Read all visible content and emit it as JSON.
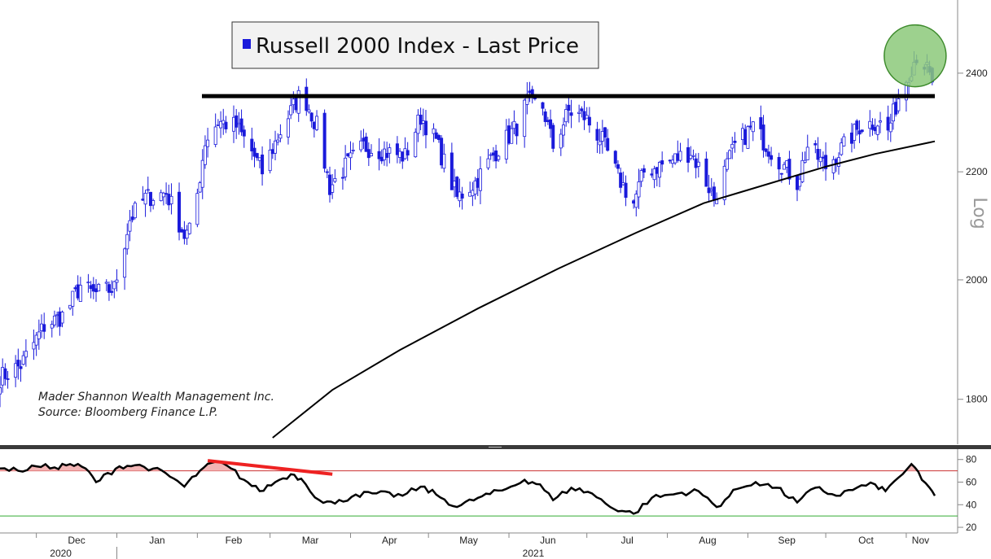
{
  "chart_data": [
    {
      "type": "candlestick",
      "legend": {
        "label": "Russell 2000 Index - Last Price",
        "color": "#1a1adb",
        "placement": "top-center"
      },
      "y_scale": "log",
      "y_scale_label": "Log",
      "ylim": [
        1730,
        2560
      ],
      "y_ticks": [
        1800,
        2000,
        2200,
        2400
      ],
      "x_range": [
        "2020-11-17",
        "2021-11-12"
      ],
      "x_ticks": [
        {
          "label": "Dec",
          "date": "2020-12-01"
        },
        {
          "label": "Jan",
          "date": "2021-01-01"
        },
        {
          "label": "Feb",
          "date": "2021-02-01"
        },
        {
          "label": "Mar",
          "date": "2021-03-01"
        },
        {
          "label": "Apr",
          "date": "2021-04-01"
        },
        {
          "label": "May",
          "date": "2021-05-01"
        },
        {
          "label": "Jun",
          "date": "2021-06-01"
        },
        {
          "label": "Jul",
          "date": "2021-07-01"
        },
        {
          "label": "Aug",
          "date": "2021-08-01"
        },
        {
          "label": "Sep",
          "date": "2021-09-01"
        },
        {
          "label": "Oct",
          "date": "2021-10-01"
        },
        {
          "label": "Nov",
          "date": "2021-11-01"
        }
      ],
      "x_year_labels": [
        {
          "label": "2020",
          "date": "2020-12-01"
        },
        {
          "label": "2021",
          "date": "2021-06-01"
        }
      ],
      "price_path": [
        [
          "2020-11-17",
          1835
        ],
        [
          "2020-11-25",
          1855
        ],
        [
          "2020-12-04",
          1920
        ],
        [
          "2020-12-12",
          1940
        ],
        [
          "2020-12-18",
          1990
        ],
        [
          "2020-12-23",
          1975
        ],
        [
          "2020-12-31",
          1985
        ],
        [
          "2021-01-06",
          2110
        ],
        [
          "2021-01-12",
          2150
        ],
        [
          "2021-01-20",
          2160
        ],
        [
          "2021-01-27",
          2080
        ],
        [
          "2021-01-30",
          2090
        ],
        [
          "2021-02-04",
          2260
        ],
        [
          "2021-02-09",
          2300
        ],
        [
          "2021-02-16",
          2290
        ],
        [
          "2021-02-22",
          2240
        ],
        [
          "2021-02-26",
          2200
        ],
        [
          "2021-03-05",
          2280
        ],
        [
          "2021-03-12",
          2350
        ],
        [
          "2021-03-15",
          2340
        ],
        [
          "2021-03-19",
          2290
        ],
        [
          "2021-03-24",
          2170
        ],
        [
          "2021-03-30",
          2210
        ],
        [
          "2021-04-06",
          2250
        ],
        [
          "2021-04-14",
          2240
        ],
        [
          "2021-04-22",
          2230
        ],
        [
          "2021-04-28",
          2310
        ],
        [
          "2021-05-04",
          2260
        ],
        [
          "2021-05-12",
          2150
        ],
        [
          "2021-05-19",
          2180
        ],
        [
          "2021-05-27",
          2240
        ],
        [
          "2021-06-04",
          2290
        ],
        [
          "2021-06-08",
          2340
        ],
        [
          "2021-06-14",
          2330
        ],
        [
          "2021-06-18",
          2250
        ],
        [
          "2021-06-24",
          2320
        ],
        [
          "2021-06-30",
          2310
        ],
        [
          "2021-07-07",
          2260
        ],
        [
          "2021-07-13",
          2190
        ],
        [
          "2021-07-19",
          2140
        ],
        [
          "2021-07-23",
          2200
        ],
        [
          "2021-08-02",
          2220
        ],
        [
          "2021-08-10",
          2240
        ],
        [
          "2021-08-19",
          2150
        ],
        [
          "2021-08-27",
          2250
        ],
        [
          "2021-09-03",
          2290
        ],
        [
          "2021-09-10",
          2240
        ],
        [
          "2021-09-20",
          2180
        ],
        [
          "2021-09-24",
          2250
        ],
        [
          "2021-10-01",
          2210
        ],
        [
          "2021-10-08",
          2250
        ],
        [
          "2021-10-14",
          2290
        ],
        [
          "2021-10-21",
          2300
        ],
        [
          "2021-10-25",
          2280
        ],
        [
          "2021-10-29",
          2350
        ],
        [
          "2021-11-05",
          2440
        ],
        [
          "2021-11-08",
          2420
        ],
        [
          "2021-11-10",
          2390
        ],
        [
          "2021-11-12",
          2350
        ]
      ],
      "moving_average": {
        "color": "#000000",
        "points": [
          [
            "2021-03-02",
            1740
          ],
          [
            "2021-03-25",
            1815
          ],
          [
            "2021-04-20",
            1880
          ],
          [
            "2021-05-20",
            1950
          ],
          [
            "2021-06-20",
            2020
          ],
          [
            "2021-07-20",
            2085
          ],
          [
            "2021-08-15",
            2140
          ],
          [
            "2021-09-01",
            2165
          ],
          [
            "2021-10-01",
            2210
          ],
          [
            "2021-10-20",
            2235
          ],
          [
            "2021-11-12",
            2260
          ]
        ]
      },
      "resistance_line": {
        "value": 2352,
        "x_start": "2021-01-30",
        "x_end": "2021-11-12",
        "color": "#000000"
      },
      "highlight_circle": {
        "date": "2021-11-06",
        "value": 2430,
        "fill": "#8cc97a",
        "stroke": "#3c8a2b"
      },
      "annotations": [
        "Mader Shannon Wealth Management Inc.",
        "Source: Bloomberg Finance L.P."
      ]
    },
    {
      "type": "line",
      "series": [
        {
          "values": [
            [
              "2020-11-17",
              72
            ],
            [
              "2020-11-24",
              70
            ],
            [
              "2020-12-01",
              74
            ],
            [
              "2020-12-08",
              73
            ],
            [
              "2020-12-14",
              76
            ],
            [
              "2020-12-20",
              72
            ],
            [
              "2020-12-24",
              60
            ],
            [
              "2021-01-02",
              74
            ],
            [
              "2021-01-08",
              75
            ],
            [
              "2021-01-15",
              72
            ],
            [
              "2021-01-23",
              63
            ],
            [
              "2021-01-27",
              56
            ],
            [
              "2021-02-02",
              70
            ],
            [
              "2021-02-08",
              78
            ],
            [
              "2021-02-14",
              72
            ],
            [
              "2021-02-19",
              62
            ],
            [
              "2021-02-25",
              52
            ],
            [
              "2021-03-03",
              60
            ],
            [
              "2021-03-09",
              67
            ],
            [
              "2021-03-13",
              63
            ],
            [
              "2021-03-20",
              44
            ],
            [
              "2021-03-26",
              41
            ],
            [
              "2021-04-03",
              49
            ],
            [
              "2021-04-11",
              50
            ],
            [
              "2021-04-21",
              48
            ],
            [
              "2021-04-28",
              56
            ],
            [
              "2021-05-04",
              49
            ],
            [
              "2021-05-12",
              38
            ],
            [
              "2021-05-20",
              46
            ],
            [
              "2021-05-31",
              54
            ],
            [
              "2021-06-07",
              62
            ],
            [
              "2021-06-13",
              58
            ],
            [
              "2021-06-18",
              44
            ],
            [
              "2021-06-25",
              55
            ],
            [
              "2021-07-03",
              50
            ],
            [
              "2021-07-10",
              38
            ],
            [
              "2021-07-19",
              32
            ],
            [
              "2021-07-26",
              46
            ],
            [
              "2021-08-05",
              50
            ],
            [
              "2021-08-13",
              52
            ],
            [
              "2021-08-20",
              38
            ],
            [
              "2021-08-28",
              54
            ],
            [
              "2021-09-04",
              60
            ],
            [
              "2021-09-12",
              55
            ],
            [
              "2021-09-20",
              42
            ],
            [
              "2021-09-27",
              55
            ],
            [
              "2021-10-05",
              48
            ],
            [
              "2021-10-13",
              55
            ],
            [
              "2021-10-20",
              58
            ],
            [
              "2021-10-24",
              52
            ],
            [
              "2021-10-29",
              64
            ],
            [
              "2021-11-03",
              76
            ],
            [
              "2021-11-07",
              62
            ],
            [
              "2021-11-10",
              55
            ],
            [
              "2021-11-12",
              48
            ]
          ],
          "color": "#000000"
        }
      ],
      "ylim": [
        15,
        87
      ],
      "y_ticks": [
        20,
        40,
        60,
        80
      ],
      "reference_lines": [
        {
          "value": 70,
          "color": "#cc3333"
        },
        {
          "value": 30,
          "color": "#33aa33"
        }
      ],
      "overbought_fill_color": "#f2b5b5",
      "trend_line": {
        "start": [
          "2021-02-05",
          79
        ],
        "end": [
          "2021-03-25",
          67
        ],
        "color": "#ee2222"
      }
    }
  ]
}
